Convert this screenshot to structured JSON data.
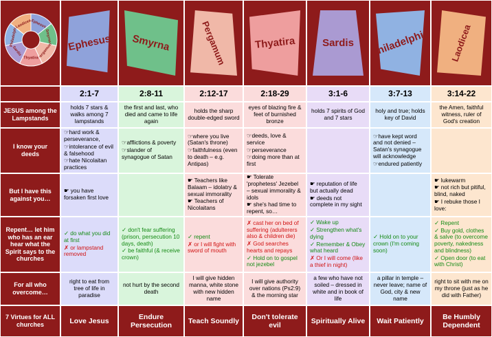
{
  "header": {
    "cities": [
      "Ephesus",
      "Smyrna",
      "Pergamum",
      "Thyatira",
      "Sardis",
      "Philadelphia",
      "Laodicea"
    ]
  },
  "table": {
    "verses": [
      "2:1-7",
      "2:8-11",
      "2:12-17",
      "2:18-29",
      "3:1-6",
      "3:7-13",
      "3:14-22"
    ],
    "rows": [
      {
        "label": "JESUS among the Lampstands",
        "cells": [
          "holds 7 stars & walks among 7 lampstands",
          "the first and last, who died and came to life again",
          "holds the sharp double-edged sword",
          "eyes of blazing fire & feet of burnished bronze",
          "holds 7 spirits of God and 7 stars",
          "holy and true; holds key of David",
          "the Amen, faithful witness, ruler of God's creation"
        ]
      },
      {
        "label": "I know your deeds",
        "cells": [
          [
            "☞hard work & perseverance,",
            "☞intolerance of evil & falsehood",
            "☞hate Nicolaitan practices"
          ],
          [
            "☞afflictions & poverty",
            "☞slander of synagogue of Satan"
          ],
          [
            "☞where you live (Satan's throne)",
            "☞faithfulness (even to death – e.g. Antipas)"
          ],
          [
            "☞deeds, love & service",
            "☞perseverance",
            "☞doing more than at first"
          ],
          [],
          [
            "☞have kept word and not denied – Satan's synagogue will acknowledge",
            "☞endured patiently"
          ],
          []
        ]
      },
      {
        "label": "But I have this against you…",
        "cells": [
          [
            "☛ you have forsaken first love"
          ],
          [],
          [
            "☛ Teachers like Balaam – idolatry & sexual immorality",
            "☛ Teachers of Nicolaitans"
          ],
          [
            "☛ Tolerate 'prophetess' Jezebel – sexual immorality & idols",
            "☛ she's had time to repent, so…"
          ],
          [
            "☛ reputation of life but actually dead",
            "☛ deeds not complete in my sight"
          ],
          [],
          [
            "☛ lukewarm",
            "☛ not rich but pitiful, blind, naked",
            "☛ I rebuke those I love:"
          ]
        ]
      },
      {
        "label": "Repent… let him who has an ear hear what the Spirit says to the churches",
        "cells": [
          [
            "✓ do what you did at first",
            "✗ or lampstand removed"
          ],
          [
            "✓ don't fear suffering (prison, persecution 10 days, death)",
            "✓ be faithful (& receive crown)"
          ],
          [
            "✓ repent",
            "✗ or I will fight with sword of mouth"
          ],
          [
            "✗ cast her on  bed of suffering (adulterers also & children die)",
            "✗ God searches hearts and repays",
            "✓ Hold on to gospel not jezebel"
          ],
          [
            "✓ Wake up",
            "✓ Strengthen what's dying",
            "✓ Remember & Obey what heard",
            "✗ Or I will come (like a thief in night)"
          ],
          [
            "✓ Hold on to your crown (I'm coming soon)"
          ],
          [
            "✓ Repent",
            "✓ Buy gold, clothes & salve (to overcome poverty, nakedness and blindness)",
            "✓ Open door (to eat with Christ)"
          ]
        ]
      },
      {
        "label": "For all who overcome…",
        "cells": [
          "right to eat from tree of life in paradise",
          "not hurt by the second death",
          "I will give hidden manna, white stone with new hidden name",
          "I will give authority over nations (Ps2:9) & the morning star",
          "a few who have not soiled – dressed in white and in book of life",
          "a pillar in temple – never leave; name of God, city & new name",
          "right to sit with me on my throne (just as he did with Father)"
        ]
      },
      {
        "label": "7 Virtues for ALL churches",
        "cells": [
          "Love Jesus",
          "Endure Persecution",
          "Teach Soundly",
          "Don't tolerate evil",
          "Spiritually Alive",
          "Wait Patiently",
          "Be Humbly Dependent"
        ]
      }
    ]
  }
}
